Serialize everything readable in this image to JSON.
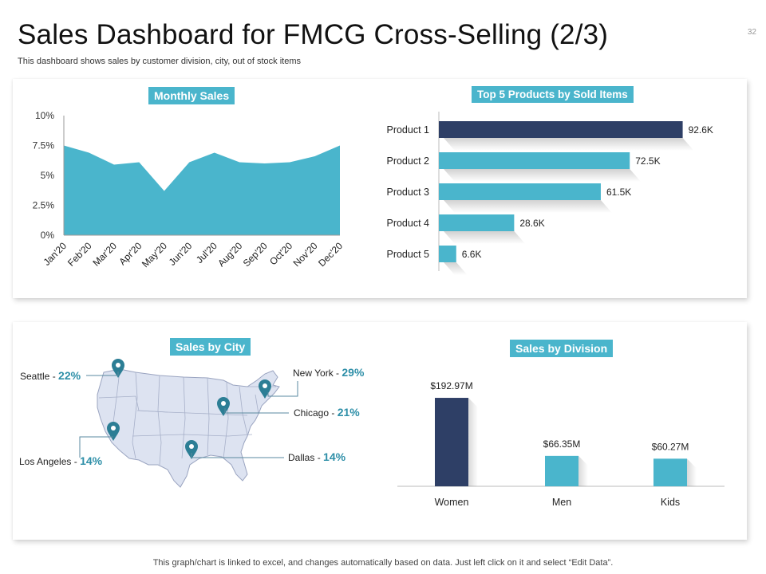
{
  "header": {
    "title": "Sales Dashboard for FMCG Cross-Selling (2/3)",
    "subtitle": "This dashboard shows sales by customer division, city, out of stock items",
    "page_number": "32"
  },
  "footer": {
    "note": "This graph/chart is linked to excel, and changes automatically based on data. Just left click on it and select “Edit Data”."
  },
  "colors": {
    "accent": "#4ab5cc",
    "dark": "#2e3f66",
    "map_fill": "#dde3f1"
  },
  "chart_data": [
    {
      "id": "monthly",
      "type": "area",
      "title": "Monthly Sales",
      "categories": [
        "Jan'20",
        "Feb'20",
        "Mar'20",
        "Apr'20",
        "May'20",
        "Jun'20",
        "Jul'20",
        "Aug'20",
        "Sep'20",
        "Oct'20",
        "Nov'20",
        "Dec'20"
      ],
      "values": [
        7.5,
        6.9,
        5.9,
        6.1,
        3.7,
        6.1,
        6.9,
        6.1,
        6.0,
        6.1,
        6.6,
        7.5
      ],
      "ylim": [
        0,
        10
      ],
      "yticks": [
        "0%",
        "2.5%",
        "5%",
        "7.5%",
        "10%"
      ]
    },
    {
      "id": "products",
      "type": "bar",
      "orientation": "horizontal",
      "title": "Top 5 Products by Sold Items",
      "categories": [
        "Product 1",
        "Product 2",
        "Product 3",
        "Product 4",
        "Product 5"
      ],
      "values": [
        92.6,
        72.5,
        61.5,
        28.6,
        6.6
      ],
      "labels": [
        "92.6K",
        "72.5K",
        "61.5K",
        "28.6K",
        "6.6K"
      ],
      "highlight": "Product 1"
    },
    {
      "id": "division",
      "type": "bar",
      "title": "Sales by Division",
      "categories": [
        "Women",
        "Men",
        "Kids"
      ],
      "values": [
        192.97,
        66.35,
        60.27
      ],
      "labels": [
        "$192.97M",
        "$66.35M",
        "$60.27M"
      ],
      "highlight": "Women"
    }
  ],
  "city_panel": {
    "title": "Sales by City",
    "cities": [
      {
        "name": "Seattle",
        "value": "22%"
      },
      {
        "name": "Los Angeles",
        "value": "14%"
      },
      {
        "name": "New York",
        "value": "29%"
      },
      {
        "name": "Chicago",
        "value": "21%"
      },
      {
        "name": "Dallas",
        "value": "14%"
      }
    ]
  },
  "icons": {
    "pin": "map-pin-icon"
  }
}
